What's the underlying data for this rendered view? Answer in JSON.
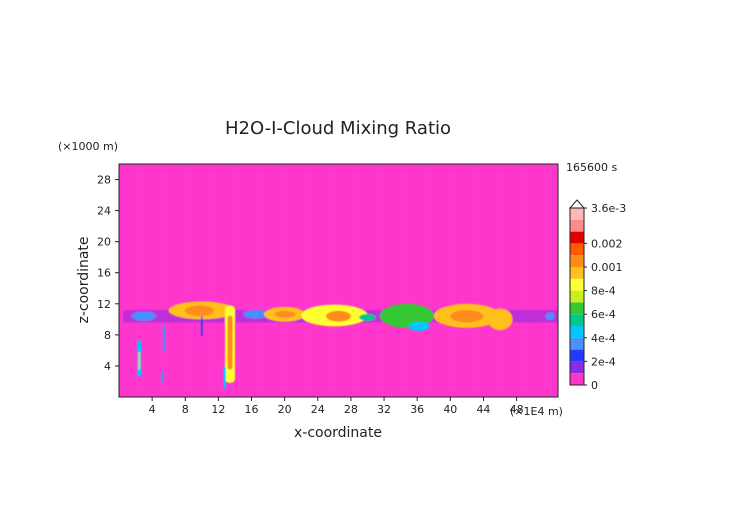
{
  "chart_data": {
    "type": "heatmap",
    "title": "H2O-I-Cloud Mixing Ratio",
    "xlabel": "x-coordinate",
    "ylabel": "z-coordinate",
    "x_unit": "(×1E4 m)",
    "y_unit": "(×1000 m)",
    "time_label": "165600 s",
    "xlim": [
      0,
      53
    ],
    "ylim": [
      0,
      30
    ],
    "x_ticks": [
      "4",
      "8",
      "12",
      "16",
      "20",
      "24",
      "28",
      "32",
      "36",
      "40",
      "44",
      "48"
    ],
    "y_ticks": [
      "4",
      "8",
      "12",
      "16",
      "20",
      "24",
      "28"
    ],
    "x_tick_values": [
      4,
      8,
      12,
      16,
      20,
      24,
      28,
      32,
      36,
      40,
      44,
      48
    ],
    "y_tick_values": [
      4,
      8,
      12,
      16,
      20,
      24,
      28
    ],
    "background_color": "#ff33cc",
    "colorbar": {
      "labels": [
        "3.6e-3",
        "0.002",
        "0.001",
        "8e-4",
        "6e-4",
        "4e-4",
        "2e-4",
        "0"
      ],
      "label_values": [
        0.0036,
        0.002,
        0.001,
        0.0008,
        0.0006,
        0.0004,
        0.0002,
        0
      ],
      "bands": [
        {
          "from": 0,
          "to": 0.0001,
          "color": "#ff33cc"
        },
        {
          "from": 0.0001,
          "to": 0.0002,
          "color": "#8a2be2"
        },
        {
          "from": 0.0002,
          "to": 0.0003,
          "color": "#1e3cff"
        },
        {
          "from": 0.0003,
          "to": 0.0004,
          "color": "#4a90ff"
        },
        {
          "from": 0.0004,
          "to": 0.0005,
          "color": "#00c8ff"
        },
        {
          "from": 0.0005,
          "to": 0.0006,
          "color": "#00c98b"
        },
        {
          "from": 0.0006,
          "to": 0.0007,
          "color": "#34c834"
        },
        {
          "from": 0.0007,
          "to": 0.0008,
          "color": "#c8ef1e"
        },
        {
          "from": 0.0008,
          "to": 0.0009,
          "color": "#ffff33"
        },
        {
          "from": 0.0009,
          "to": 0.001,
          "color": "#ffc01e"
        },
        {
          "from": 0.001,
          "to": 0.0015,
          "color": "#ff8c1a"
        },
        {
          "from": 0.0015,
          "to": 0.002,
          "color": "#ff5a00"
        },
        {
          "from": 0.002,
          "to": 0.0025,
          "color": "#e00000"
        },
        {
          "from": 0.0025,
          "to": 0.003,
          "color": "#ff8a8a"
        },
        {
          "from": 0.003,
          "to": 0.0036,
          "color": "#ffb8b8"
        }
      ]
    },
    "features": [
      {
        "kind": "layer",
        "x": [
          0.5,
          53
        ],
        "z": [
          9.6,
          11.2
        ],
        "value": 0.0001
      },
      {
        "kind": "blob",
        "x": [
          1.5,
          4.5
        ],
        "z": [
          9.8,
          11.0
        ],
        "value": 0.00035
      },
      {
        "kind": "blob",
        "x": [
          6,
          14
        ],
        "z": [
          10,
          12.3
        ],
        "value": 0.0009
      },
      {
        "kind": "blob",
        "x": [
          8,
          11.5
        ],
        "z": [
          10.4,
          11.8
        ],
        "value": 0.0013
      },
      {
        "kind": "blob",
        "x": [
          15,
          18
        ],
        "z": [
          10.1,
          11.2
        ],
        "value": 0.0003
      },
      {
        "kind": "blob",
        "x": [
          17.5,
          22.5
        ],
        "z": [
          9.7,
          11.6
        ],
        "value": 0.0009
      },
      {
        "kind": "blob",
        "x": [
          18.8,
          21.3
        ],
        "z": [
          10.2,
          11.1
        ],
        "value": 0.0013
      },
      {
        "kind": "blob",
        "x": [
          22,
          30
        ],
        "z": [
          9.1,
          11.9
        ],
        "value": 0.0008
      },
      {
        "kind": "blob",
        "x": [
          25,
          28
        ],
        "z": [
          9.7,
          11.1
        ],
        "value": 0.0013
      },
      {
        "kind": "blob",
        "x": [
          29,
          31
        ],
        "z": [
          9.8,
          10.7
        ],
        "value": 0.0005
      },
      {
        "kind": "blob",
        "x": [
          31.5,
          38
        ],
        "z": [
          8.9,
          12.0
        ],
        "value": 0.0006
      },
      {
        "kind": "blob",
        "x": [
          35,
          37.5
        ],
        "z": [
          8.5,
          9.7
        ],
        "value": 0.0004
      },
      {
        "kind": "blob",
        "x": [
          38,
          46
        ],
        "z": [
          8.9,
          12.0
        ],
        "value": 0.0009
      },
      {
        "kind": "blob",
        "x": [
          40,
          44
        ],
        "z": [
          9.6,
          11.2
        ],
        "value": 0.0013
      },
      {
        "kind": "blob",
        "x": [
          44.5,
          47.5
        ],
        "z": [
          8.6,
          11.4
        ],
        "value": 0.0009
      },
      {
        "kind": "blob",
        "x": [
          51.5,
          52.6
        ],
        "z": [
          9.9,
          10.9
        ],
        "value": 0.0003
      },
      {
        "kind": "column",
        "x": [
          12.8,
          14.0
        ],
        "z": [
          1.8,
          11.8
        ],
        "value": 0.0008
      },
      {
        "kind": "column",
        "x": [
          13.1,
          13.7
        ],
        "z": [
          3.5,
          10.5
        ],
        "value": 0.0012
      },
      {
        "kind": "column",
        "x": [
          12.6,
          12.9
        ],
        "z": [
          1.0,
          4.0
        ],
        "value": 0.0004
      },
      {
        "kind": "column",
        "x": [
          2.2,
          2.7
        ],
        "z": [
          2.6,
          7.3
        ],
        "value": 0.0004
      },
      {
        "kind": "column",
        "x": [
          2.35,
          2.55
        ],
        "z": [
          3.5,
          5.8
        ],
        "value": 0.0009
      },
      {
        "kind": "column",
        "x": [
          5.3,
          5.6
        ],
        "z": [
          5.8,
          9.3
        ],
        "value": 0.0003
      },
      {
        "kind": "column",
        "x": [
          5.1,
          5.4
        ],
        "z": [
          1.8,
          3.2
        ],
        "value": 0.0003
      },
      {
        "kind": "column",
        "x": [
          9.9,
          10.1
        ],
        "z": [
          7.8,
          10.4
        ],
        "value": 0.0002
      }
    ]
  }
}
